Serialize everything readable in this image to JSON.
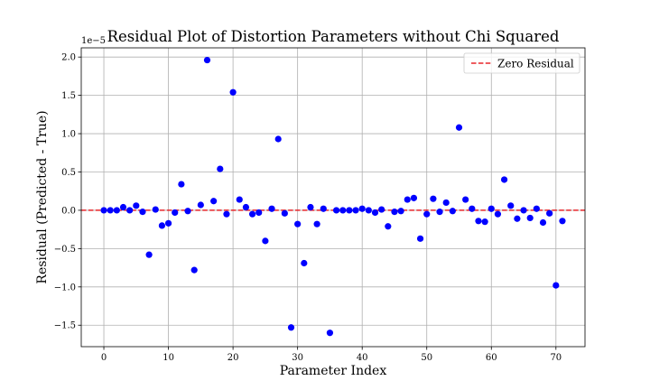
{
  "chart_data": {
    "type": "scatter",
    "title": "Residual Plot of Distortion Parameters without Chi Squared",
    "xlabel": "Parameter Index",
    "ylabel": "Residual (Predicted - True)",
    "y_offset_label": "1e−5",
    "y_scale": 1e-05,
    "xlim": [
      -3.5,
      74.5
    ],
    "ylim": [
      -1.78,
      2.12
    ],
    "xticks": [
      0,
      10,
      20,
      30,
      40,
      50,
      60,
      70
    ],
    "yticks": [
      -1.5,
      -1.0,
      -0.5,
      0.0,
      0.5,
      1.0,
      1.5,
      2.0
    ],
    "ytick_labels": [
      "−1.5",
      "−1.0",
      "−0.5",
      "0.0",
      "0.5",
      "1.0",
      "1.5",
      "2.0"
    ],
    "grid": true,
    "point_color": "#0000ff",
    "reference_line": {
      "y": 0,
      "color": "#e8262a",
      "style": "dashed",
      "label": "Zero Residual"
    },
    "legend_position": "top-right",
    "series": [
      {
        "x": [
          0,
          1,
          2,
          3,
          4,
          5,
          6,
          7,
          8,
          9,
          10,
          11,
          12,
          13,
          14,
          15,
          16,
          17,
          18,
          19,
          20,
          21,
          22,
          23,
          24,
          25,
          26,
          27,
          28,
          29,
          30,
          31,
          32,
          33,
          34,
          35,
          36,
          37,
          38,
          39,
          40,
          41,
          42,
          43,
          44,
          45,
          46,
          47,
          48,
          49,
          50,
          51,
          52,
          53,
          54,
          55,
          56,
          57,
          58,
          59,
          60,
          61,
          62,
          63,
          64,
          65,
          66,
          67,
          68,
          69,
          70,
          71
        ],
        "y": [
          0.0,
          0.0,
          0.0,
          0.04,
          0.0,
          0.06,
          -0.02,
          -0.58,
          0.01,
          -0.2,
          -0.17,
          -0.03,
          0.34,
          -0.01,
          -0.78,
          0.07,
          1.96,
          0.12,
          0.54,
          -0.05,
          1.54,
          0.14,
          0.04,
          -0.05,
          -0.03,
          -0.4,
          0.02,
          0.93,
          -0.04,
          -1.53,
          -0.18,
          -0.69,
          0.04,
          -0.18,
          0.02,
          -1.6,
          0.0,
          0.0,
          0.0,
          0.0,
          0.02,
          0.0,
          -0.03,
          0.01,
          -0.21,
          -0.02,
          -0.01,
          0.14,
          0.16,
          -0.37,
          -0.05,
          0.15,
          -0.02,
          0.1,
          -0.01,
          1.08,
          0.14,
          0.02,
          -0.14,
          -0.15,
          0.02,
          -0.05,
          0.4,
          0.06,
          -0.11,
          0.0,
          -0.1,
          0.02,
          -0.16,
          -0.04,
          -0.98,
          -0.14
        ]
      }
    ]
  }
}
